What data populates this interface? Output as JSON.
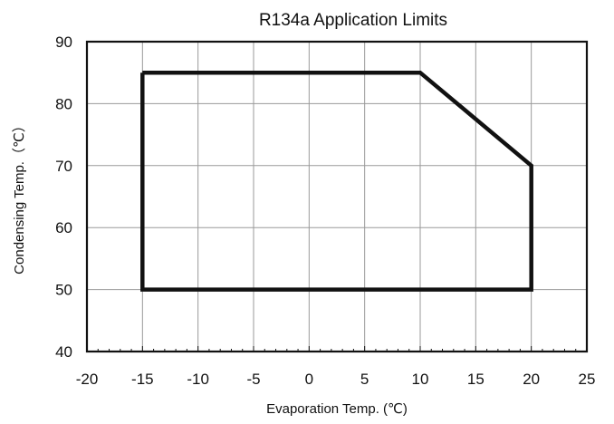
{
  "chart_data": {
    "type": "line",
    "title": "R134a Application Limits",
    "xlabel": "Evaporation Temp. (℃)",
    "ylabel": "Condensing Temp.（℃）",
    "xlim": [
      -20,
      25
    ],
    "ylim": [
      40,
      90
    ],
    "x_ticks": [
      -20,
      -15,
      -10,
      -5,
      0,
      5,
      10,
      15,
      20,
      25
    ],
    "y_ticks": [
      40,
      50,
      60,
      70,
      80,
      90
    ],
    "x_tick_labels": [
      "-20",
      "-15",
      "-10",
      "-5",
      "0",
      "5",
      "10",
      "15",
      "20",
      "25"
    ],
    "y_tick_labels": [
      "40",
      "50",
      "60",
      "70",
      "80",
      "90"
    ],
    "grid": true,
    "series": [
      {
        "x": [
          -15,
          10,
          20,
          20,
          -15,
          -15
        ],
        "y": [
          85,
          85,
          70,
          50,
          50,
          85
        ]
      }
    ]
  },
  "colors": {
    "envelope": "#111111",
    "grid": "#9a9a9a",
    "axis": "#111111"
  }
}
